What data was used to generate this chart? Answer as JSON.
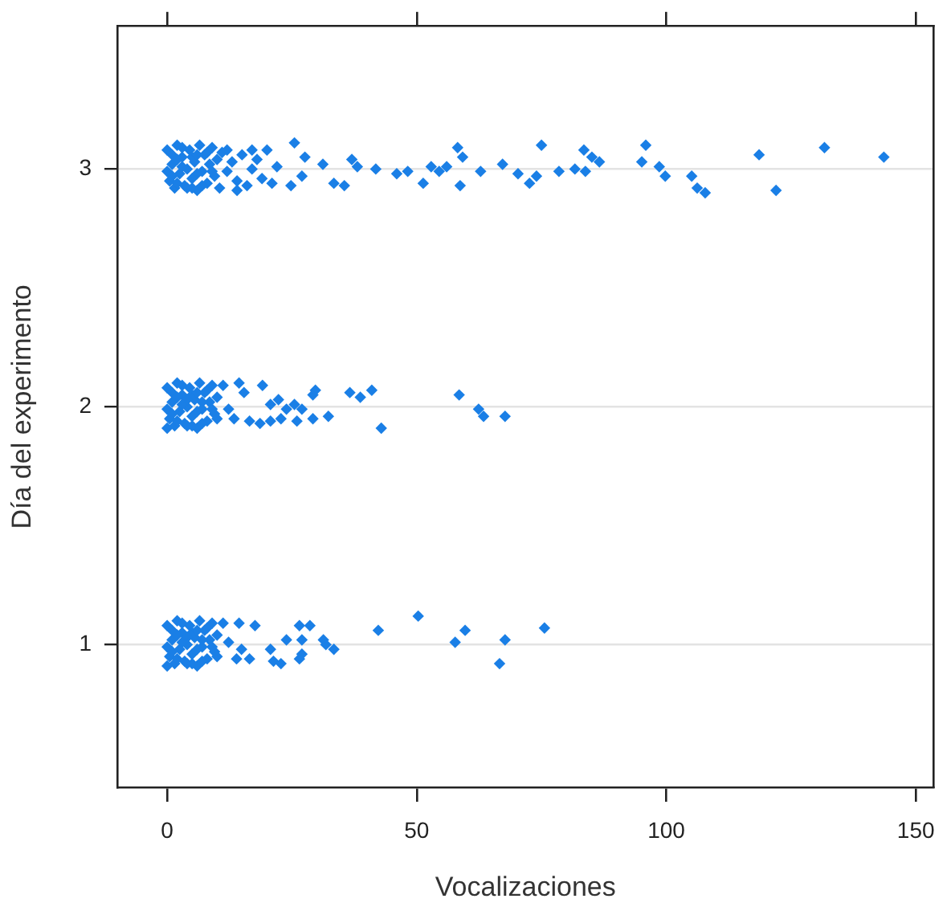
{
  "chart_data": {
    "type": "scatter",
    "xlabel": "Vocalizaciones",
    "ylabel": "Día del experimento",
    "xlim": [
      -10,
      153.6
    ],
    "xticks": [
      0,
      50,
      100,
      150
    ],
    "ylim": [
      0.4,
      3.6
    ],
    "yticks": [
      1,
      2,
      3
    ],
    "grid": "y",
    "legend": false,
    "marker": "diamond",
    "series": [
      {
        "color": "#1a7fe6",
        "x": [
          0,
          0.5,
          1,
          1.5,
          2,
          2.5,
          3,
          3.5,
          4,
          4.5,
          5,
          5.5,
          6,
          6.5,
          7,
          7.5,
          8,
          8.5,
          9,
          9.5,
          10,
          10.5,
          11,
          12,
          13,
          14,
          15,
          16,
          17,
          18,
          19,
          20,
          21,
          22,
          0,
          1,
          2,
          3,
          4,
          5,
          6,
          7,
          8,
          1,
          3,
          5,
          2,
          6,
          9,
          12,
          14,
          17,
          25.5,
          27.6,
          27,
          24.8,
          31.2,
          33.4,
          35.5,
          37,
          38.1,
          41.8,
          46,
          48.2,
          51.3,
          52.9,
          54.5,
          56,
          58.2,
          59.2,
          58.7,
          62.8,
          67.2,
          70.3,
          74,
          75,
          72.6,
          78.5,
          81.7,
          83.8,
          83.5,
          85.1,
          86.6,
          95.9,
          95.1,
          98.6,
          99.8,
          105.1,
          106.2,
          107.8,
          118.6,
          122,
          131.7,
          143.6,
          0,
          0.5,
          1,
          1.5,
          2,
          2.5,
          3,
          3.5,
          4,
          4.5,
          5,
          5.5,
          6,
          6.5,
          7,
          7.5,
          8,
          8.5,
          9,
          9.5,
          10,
          0,
          1,
          2,
          3,
          4,
          5,
          6,
          7,
          8,
          1,
          3,
          5,
          2,
          6,
          9,
          0,
          4,
          7,
          10,
          11.2,
          14.4,
          15.4,
          19.1,
          12.3,
          13.4,
          16.5,
          20.7,
          22.3,
          23.9,
          25.5,
          18.6,
          20.7,
          22.8,
          26,
          29.2,
          29.7,
          27,
          29.2,
          32.3,
          36.6,
          38.7,
          41,
          42.9,
          58.5,
          62.4,
          63.4,
          67.7,
          0,
          0.5,
          1,
          1.5,
          2,
          2.5,
          3,
          3.5,
          4,
          4.5,
          5,
          5.5,
          6,
          6.5,
          7,
          7.5,
          8,
          8.5,
          9,
          9.5,
          10,
          0,
          1,
          2,
          3,
          4,
          5,
          6,
          7,
          8,
          1,
          3,
          5,
          2,
          6,
          9,
          0,
          4,
          7,
          10,
          11.2,
          14.4,
          17.6,
          12.3,
          14.9,
          16.5,
          13.9,
          20.7,
          21.3,
          22.8,
          23.9,
          26.5,
          28.6,
          27,
          27,
          26.5,
          31.3,
          31.8,
          33.4,
          42.3,
          50.3,
          57.7,
          59.7,
          67.7,
          66.6,
          75.6
        ],
        "values": [
          3.08,
          2.95,
          3.02,
          2.92,
          3.1,
          2.98,
          3.05,
          2.93,
          3.0,
          3.08,
          2.96,
          3.03,
          2.91,
          3.1,
          2.99,
          3.06,
          2.94,
          3.02,
          3.09,
          2.97,
          3.04,
          2.92,
          3.07,
          2.99,
          3.03,
          2.95,
          3.06,
          2.93,
          3.0,
          3.04,
          2.96,
          3.08,
          2.94,
          3.01,
          2.99,
          3.06,
          2.94,
          3.09,
          2.92,
          3.05,
          2.98,
          2.93,
          3.07,
          2.97,
          3.01,
          2.92,
          3.04,
          3.06,
          2.99,
          3.08,
          2.91,
          3.08,
          3.11,
          3.05,
          2.97,
          2.93,
          3.02,
          2.94,
          2.93,
          3.04,
          3.01,
          3.0,
          2.98,
          2.99,
          2.94,
          3.01,
          2.99,
          3.01,
          3.09,
          3.05,
          2.93,
          2.99,
          3.02,
          2.98,
          2.97,
          3.1,
          2.94,
          2.99,
          3.0,
          2.99,
          3.08,
          3.05,
          3.03,
          3.1,
          3.03,
          3.01,
          2.97,
          2.97,
          2.92,
          2.9,
          3.06,
          2.91,
          3.09,
          3.05,
          2.08,
          1.95,
          2.02,
          1.92,
          2.1,
          1.98,
          2.05,
          1.93,
          2.0,
          2.08,
          1.96,
          2.03,
          1.91,
          2.1,
          1.99,
          2.06,
          1.94,
          2.02,
          2.09,
          1.97,
          2.04,
          1.99,
          2.06,
          1.94,
          2.09,
          1.92,
          2.05,
          1.98,
          1.93,
          2.07,
          1.97,
          2.01,
          1.92,
          2.04,
          2.06,
          1.99,
          1.91,
          2.03,
          2.02,
          1.95,
          2.09,
          2.1,
          2.06,
          2.09,
          1.99,
          1.95,
          1.94,
          2.01,
          2.03,
          1.99,
          2.01,
          1.93,
          1.94,
          1.95,
          1.94,
          2.05,
          2.07,
          1.99,
          1.95,
          1.96,
          2.06,
          2.04,
          2.07,
          1.91,
          2.05,
          1.99,
          1.96,
          1.96,
          1.08,
          0.95,
          1.02,
          0.92,
          1.1,
          0.98,
          1.05,
          0.93,
          1.0,
          1.08,
          0.96,
          1.03,
          0.91,
          1.1,
          0.99,
          1.06,
          0.94,
          1.02,
          1.09,
          0.97,
          1.04,
          0.99,
          1.06,
          0.94,
          1.09,
          0.92,
          1.05,
          0.98,
          0.93,
          1.07,
          0.97,
          1.01,
          0.92,
          1.04,
          1.06,
          0.99,
          0.91,
          1.03,
          1.02,
          0.95,
          1.09,
          1.09,
          1.08,
          1.01,
          0.98,
          0.94,
          0.94,
          0.98,
          0.93,
          0.92,
          1.02,
          1.08,
          1.08,
          1.02,
          0.96,
          0.94,
          1.02,
          1.0,
          0.98,
          1.06,
          1.12,
          1.01,
          1.06,
          1.02,
          0.92,
          1.07
        ]
      }
    ]
  }
}
